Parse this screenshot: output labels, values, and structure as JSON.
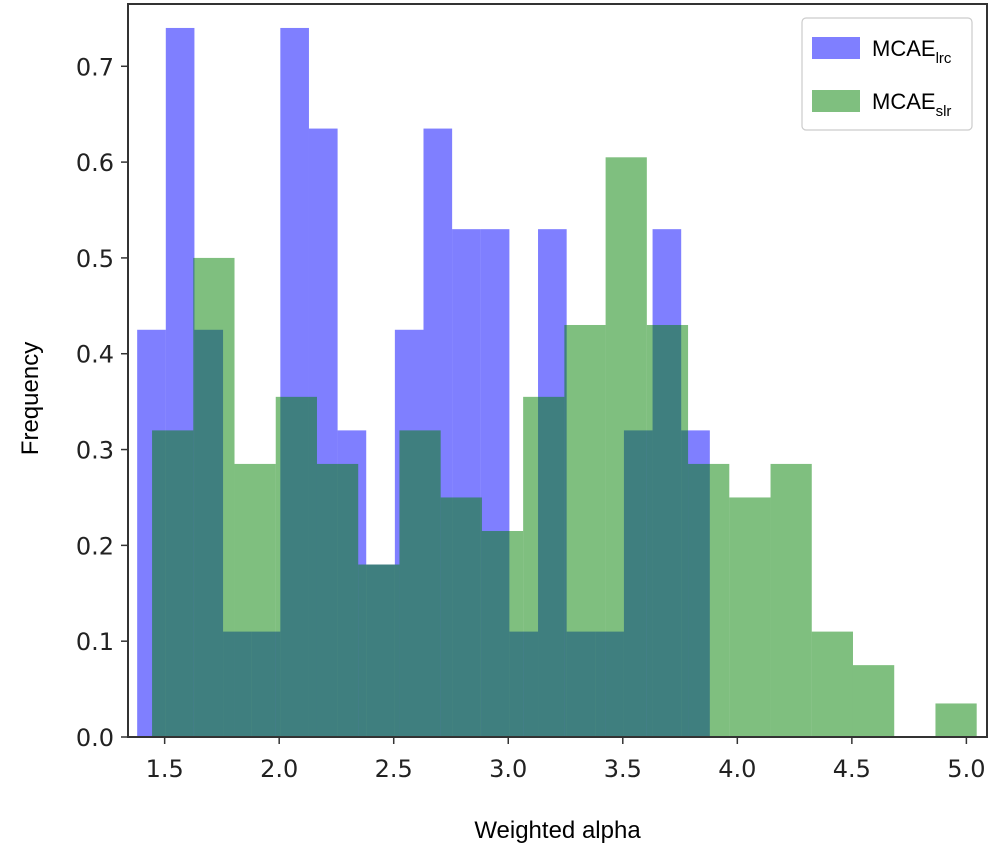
{
  "chart_data": {
    "type": "bar",
    "subtype": "histogram",
    "xlabel": "Weighted alpha",
    "ylabel": "Frequency",
    "xlim": [
      1.34,
      5.09
    ],
    "ylim": [
      0.0,
      0.765
    ],
    "grid": false,
    "legend_position": "top-right",
    "x_ticks": [
      {
        "value": 1.5,
        "label": "1.5"
      },
      {
        "value": 2.0,
        "label": "2.0"
      },
      {
        "value": 2.5,
        "label": "2.5"
      },
      {
        "value": 3.0,
        "label": "3.0"
      },
      {
        "value": 3.5,
        "label": "3.5"
      },
      {
        "value": 4.0,
        "label": "4.0"
      },
      {
        "value": 4.5,
        "label": "4.5"
      },
      {
        "value": 5.0,
        "label": "5.0"
      }
    ],
    "y_ticks": [
      {
        "value": 0.0,
        "label": "0.0"
      },
      {
        "value": 0.1,
        "label": "0.1"
      },
      {
        "value": 0.2,
        "label": "0.2"
      },
      {
        "value": 0.3,
        "label": "0.3"
      },
      {
        "value": 0.4,
        "label": "0.4"
      },
      {
        "value": 0.5,
        "label": "0.5"
      },
      {
        "value": 0.6,
        "label": "0.6"
      },
      {
        "value": 0.7,
        "label": "0.7"
      }
    ],
    "series": [
      {
        "name": "MCAE_lrc",
        "legend_main": "MCAE",
        "legend_sub": "lrc",
        "color": "#0000ff",
        "opacity": 0.5,
        "bin_edges": [
          1.38,
          1.505,
          1.63,
          1.755,
          1.88,
          2.005,
          2.13,
          2.255,
          2.38,
          2.505,
          2.63,
          2.755,
          2.88,
          3.005,
          3.13,
          3.255,
          3.38,
          3.505,
          3.63,
          3.755,
          3.88
        ],
        "values": [
          0.425,
          0.74,
          0.425,
          0.11,
          0.11,
          0.74,
          0.635,
          0.32,
          0.18,
          0.425,
          0.635,
          0.53,
          0.53,
          0.11,
          0.53,
          0.11,
          0.11,
          0.32,
          0.53,
          0.32
        ]
      },
      {
        "name": "MCAE_slr",
        "legend_main": "MCAE",
        "legend_sub": "slr",
        "color": "#008000",
        "opacity": 0.5,
        "bin_edges": [
          1.445,
          1.625,
          1.805,
          1.985,
          2.165,
          2.345,
          2.525,
          2.705,
          2.885,
          3.065,
          3.245,
          3.425,
          3.605,
          3.785,
          3.965,
          4.145,
          4.325,
          4.505,
          4.685,
          4.865,
          5.045
        ],
        "values": [
          0.32,
          0.5,
          0.285,
          0.355,
          0.285,
          0.18,
          0.32,
          0.25,
          0.215,
          0.355,
          0.43,
          0.605,
          0.43,
          0.285,
          0.25,
          0.285,
          0.11,
          0.075,
          0.0,
          0.035
        ]
      }
    ]
  }
}
